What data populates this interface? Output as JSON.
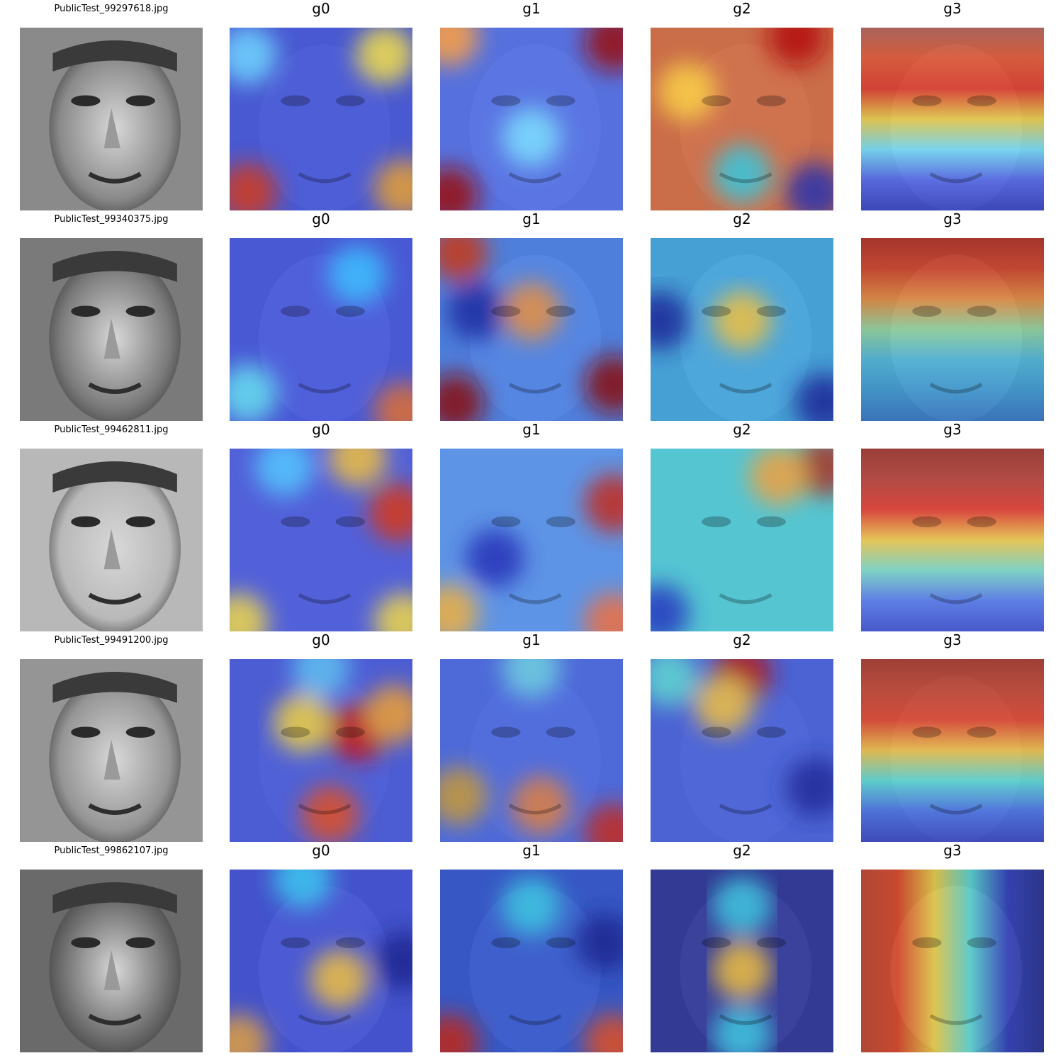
{
  "figure": {
    "rows": [
      {
        "filename": "PublicTest_99297618.jpg",
        "panels": [
          "g0",
          "g1",
          "g2",
          "g3"
        ],
        "face_tone": "#8a8a8a",
        "heat": {
          "g0": {
            "base": "#3b4ee0",
            "spots": [
              [
                "#f4e04a",
                0.85,
                0.15
              ],
              [
                "#d23a1e",
                0.1,
                0.9
              ],
              [
                "#e8a030",
                0.95,
                0.88
              ],
              [
                "#6fd6ff",
                0.1,
                0.15
              ]
            ]
          },
          "g1": {
            "base": "#4a6bf0",
            "spots": [
              [
                "#9a1010",
                0.95,
                0.08
              ],
              [
                "#9a1010",
                0.05,
                0.92
              ],
              [
                "#ffa040",
                0.05,
                0.05
              ],
              [
                "#7ee0ff",
                0.5,
                0.6
              ]
            ]
          },
          "g2": {
            "base": "#d8663a",
            "spots": [
              [
                "#b41010",
                0.8,
                0.05
              ],
              [
                "#35c8e0",
                0.5,
                0.8
              ],
              [
                "#2832b0",
                0.9,
                0.9
              ],
              [
                "#fbd14a",
                0.2,
                0.35
              ]
            ]
          },
          "g3": {
            "bands": [
              "#b05a50",
              "#e8502a",
              "#e23020",
              "#f0d040",
              "#6ee0ff",
              "#4a60f0",
              "#2836c0"
            ]
          }
        }
      },
      {
        "filename": "PublicTest_99340375.jpg",
        "panels": [
          "g0",
          "g1",
          "g2",
          "g3"
        ],
        "face_tone": "#7a7a7a",
        "heat": {
          "g0": {
            "base": "#3e52e8",
            "spots": [
              [
                "#3ec0ff",
                0.7,
                0.2
              ],
              [
                "#68e0f0",
                0.1,
                0.85
              ],
              [
                "#e07030",
                0.95,
                0.95
              ]
            ]
          },
          "g1": {
            "base": "#4480f0",
            "spots": [
              [
                "#e89040",
                0.5,
                0.4
              ],
              [
                "#8a1010",
                0.08,
                0.9
              ],
              [
                "#8a1010",
                0.95,
                0.8
              ],
              [
                "#c83818",
                0.1,
                0.08
              ],
              [
                "#1a2aa0",
                0.2,
                0.4
              ]
            ]
          },
          "g2": {
            "base": "#3ca8e8",
            "spots": [
              [
                "#c81818",
                0.5,
                0.45
              ],
              [
                "#f0c040",
                0.5,
                0.45
              ],
              [
                "#1c2898",
                0.05,
                0.45
              ],
              [
                "#1c2898",
                0.95,
                0.9
              ]
            ]
          },
          "g3": {
            "bands": [
              "#b02418",
              "#d23a20",
              "#e88838",
              "#8ed8a0",
              "#46b8e0",
              "#3498d8",
              "#2a70c8"
            ]
          }
        }
      },
      {
        "filename": "PublicTest_99462811.jpg",
        "panels": [
          "g0",
          "g1",
          "g2",
          "g3"
        ],
        "face_tone": "#b8b8b8",
        "heat": {
          "g0": {
            "base": "#3c4ee0",
            "spots": [
              [
                "#d83818",
                0.92,
                0.35
              ],
              [
                "#f0c040",
                0.7,
                0.05
              ],
              [
                "#f0d848",
                0.05,
                0.95
              ],
              [
                "#f0d848",
                0.95,
                0.95
              ],
              [
                "#54c8ff",
                0.3,
                0.1
              ]
            ]
          },
          "g1": {
            "base": "#4a8cf0",
            "spots": [
              [
                "#c42a1c",
                0.95,
                0.3
              ],
              [
                "#f0b040",
                0.05,
                0.9
              ],
              [
                "#f07040",
                0.95,
                0.95
              ],
              [
                "#2630b8",
                0.3,
                0.6
              ]
            ]
          },
          "g2": {
            "base": "#40c8d8",
            "spots": [
              [
                "#a83028",
                0.95,
                0.1
              ],
              [
                "#f0a040",
                0.7,
                0.15
              ],
              [
                "#2838c0",
                0.05,
                0.9
              ]
            ]
          },
          "g3": {
            "bands": [
              "#902018",
              "#b03028",
              "#e02a20",
              "#f0c840",
              "#70d8c8",
              "#4870f0",
              "#2c40d0"
            ]
          }
        }
      },
      {
        "filename": "PublicTest_99491200.jpg",
        "panels": [
          "g0",
          "g1",
          "g2",
          "g3"
        ],
        "face_tone": "#959595",
        "heat": {
          "g0": {
            "base": "#3c50e0",
            "spots": [
              [
                "#c81818",
                0.7,
                0.4
              ],
              [
                "#f0a030",
                0.9,
                0.3
              ],
              [
                "#e05020",
                0.55,
                0.85
              ],
              [
                "#f0d040",
                0.4,
                0.35
              ],
              [
                "#60c0f0",
                0.5,
                0.05
              ]
            ]
          },
          "g1": {
            "base": "#3e60e8",
            "spots": [
              [
                "#c89a38",
                0.1,
                0.75
              ],
              [
                "#c42a1c",
                0.95,
                0.95
              ],
              [
                "#e08040",
                0.55,
                0.8
              ],
              [
                "#70d0e0",
                0.5,
                0.05
              ]
            ]
          },
          "g2": {
            "base": "#3a58e0",
            "spots": [
              [
                "#b81818",
                0.5,
                0.08
              ],
              [
                "#f0c040",
                0.4,
                0.25
              ],
              [
                "#202c98",
                0.9,
                0.7
              ],
              [
                "#60d8d0",
                0.1,
                0.1
              ]
            ]
          },
          "g3": {
            "bands": [
              "#a02a20",
              "#c03a28",
              "#e23a24",
              "#f0c040",
              "#50d8d8",
              "#3c68e8",
              "#2838c0"
            ]
          }
        }
      },
      {
        "filename": "PublicTest_99862107.jpg",
        "panels": [
          "g0",
          "g1",
          "g2",
          "g3"
        ],
        "face_tone": "#6a6a6a",
        "heat": {
          "g0": {
            "base": "#3c4ee0",
            "spots": [
              [
                "#f0c040",
                0.6,
                0.6
              ],
              [
                "#e0a040",
                0.05,
                0.95
              ],
              [
                "#3ec8f0",
                0.4,
                0.05
              ],
              [
                "#1c2890",
                0.95,
                0.5
              ]
            ]
          },
          "g1": {
            "base": "#2c54d8",
            "spots": [
              [
                "#c02818",
                0.05,
                0.95
              ],
              [
                "#e05020",
                0.95,
                0.95
              ],
              [
                "#3ec8e0",
                0.5,
                0.2
              ],
              [
                "#1c2890",
                0.9,
                0.4
              ]
            ]
          },
          "g2": {
            "base": "#26309c",
            "spots": [
              [
                "#c81818",
                0.5,
                0.55
              ],
              [
                "#f0c040",
                0.5,
                0.55
              ],
              [
                "#40c8e0",
                0.5,
                0.2
              ],
              [
                "#40c8e0",
                0.5,
                0.9
              ]
            ]
          },
          "g3": {
            "cols": [
              "#c04028",
              "#e04020",
              "#f0d040",
              "#50d8d8",
              "#2838c0",
              "#1c2890"
            ]
          }
        }
      }
    ]
  }
}
